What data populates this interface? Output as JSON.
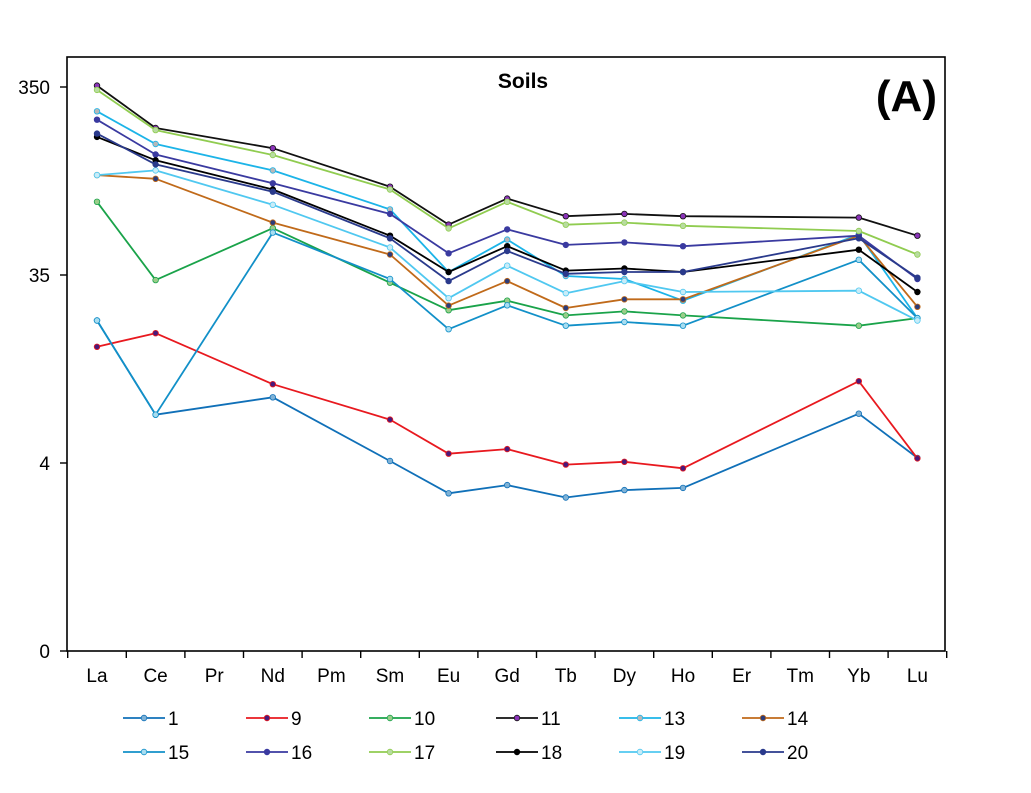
{
  "chart_data": {
    "type": "line",
    "title": "Soils",
    "panel_label": "(A)",
    "xlabel": "",
    "ylabel": "",
    "y_scale": "log",
    "y_ticks": [
      {
        "value": 0.4,
        "label": "0"
      },
      {
        "value": 4,
        "label": "4"
      },
      {
        "value": 35,
        "label": "35"
      },
      {
        "value": 350,
        "label": "350"
      }
    ],
    "ylim": [
      0.4,
      800
    ],
    "categories": [
      "La",
      "Ce",
      "Pr",
      "Nd",
      "Pm",
      "Sm",
      "Eu",
      "Gd",
      "Tb",
      "Dy",
      "Ho",
      "Er",
      "Tm",
      "Yb",
      "Lu"
    ],
    "grid": false,
    "legend_position": "bottom",
    "series": [
      {
        "name": "1",
        "color": "#1070B8",
        "marker_color": "#7FB2D6",
        "values": [
          22.9,
          7.23,
          null,
          8.94,
          null,
          4.1,
          2.76,
          3.05,
          2.62,
          2.87,
          2.95,
          null,
          null,
          7.32,
          4.26
        ]
      },
      {
        "name": "9",
        "color": "#E8191F",
        "marker_color": "#4A1A7A",
        "values": [
          16.6,
          19.6,
          null,
          10.5,
          null,
          6.81,
          4.48,
          4.74,
          3.92,
          4.06,
          3.75,
          null,
          null,
          10.9,
          4.23
        ]
      },
      {
        "name": "10",
        "color": "#1AA34A",
        "marker_color": "#9ACD8A",
        "values": [
          98.0,
          37.6,
          null,
          71.0,
          null,
          36.4,
          26.0,
          29.2,
          24.4,
          25.6,
          24.4,
          null,
          null,
          21.5,
          23.6
        ]
      },
      {
        "name": "11",
        "color": "#111111",
        "marker_color": "#8A33B8",
        "values": [
          407,
          242,
          null,
          189,
          null,
          118,
          74.2,
          102,
          82.2,
          84.5,
          82.2,
          null,
          null,
          80.8,
          64.7
        ]
      },
      {
        "name": "13",
        "color": "#1CB4E8",
        "marker_color": "#B8B8B8",
        "values": [
          297,
          199,
          null,
          144,
          null,
          89.3,
          41.5,
          61.7,
          39.5,
          38.1,
          29.2,
          null,
          null,
          65.7,
          23.6
        ]
      },
      {
        "name": "14",
        "color": "#C06A1A",
        "marker_color": "#2C3C7A",
        "values": [
          136,
          130,
          null,
          76.0,
          null,
          51.4,
          27.5,
          37.1,
          26.7,
          29.7,
          29.7,
          null,
          null,
          64.7,
          27.1
        ]
      },
      {
        "name": "15",
        "color": "#1290C8",
        "marker_color": "#A8DDF0",
        "values": [
          22.9,
          7.23,
          null,
          67.2,
          null,
          38.1,
          20.6,
          27.6,
          21.5,
          22.5,
          21.5,
          null,
          null,
          48.2,
          23.6
        ]
      },
      {
        "name": "16",
        "color": "#3A3AA0",
        "marker_color": "#3A3AA0",
        "values": [
          268,
          175,
          null,
          123,
          null,
          84.5,
          52.2,
          69.9,
          57.8,
          59.6,
          56.9,
          null,
          null,
          64.7,
          38.1
        ]
      },
      {
        "name": "17",
        "color": "#90CC50",
        "marker_color": "#B8DCA0",
        "values": [
          386,
          236,
          null,
          174,
          null,
          114,
          70.8,
          98.0,
          74.1,
          76.0,
          73.1,
          null,
          null,
          68.6,
          51.4
        ]
      },
      {
        "name": "18",
        "color": "#000000",
        "marker_color": "#000000",
        "values": [
          217,
          163,
          null,
          114,
          null,
          64.7,
          41.5,
          56.9,
          42.2,
          43.3,
          41.5,
          null,
          null,
          54.5,
          32.5
        ]
      },
      {
        "name": "19",
        "color": "#50C8F0",
        "marker_color": "#C8ECF8",
        "values": [
          136,
          144,
          null,
          94.5,
          null,
          56.0,
          30.1,
          44.8,
          32.0,
          37.1,
          32.5,
          null,
          null,
          33.0,
          22.9
        ]
      },
      {
        "name": "20",
        "color": "#2A3A8C",
        "marker_color": "#2A3A8C",
        "values": [
          226,
          155,
          null,
          111,
          null,
          62.7,
          37.1,
          53.7,
          40.6,
          41.5,
          41.5,
          null,
          null,
          62.7,
          38.7
        ]
      }
    ]
  }
}
